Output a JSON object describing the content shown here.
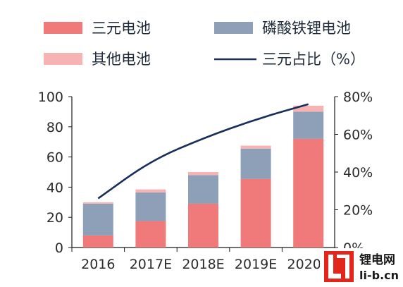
{
  "chart_data": {
    "type": "bar",
    "stacked": true,
    "categories": [
      "2016",
      "2017E",
      "2018E",
      "2019E",
      "2020E"
    ],
    "series": [
      {
        "name": "三元电池",
        "kind": "bar",
        "axis": "left",
        "color": "#f07a7a",
        "values": [
          8,
          17.5,
          29,
          45.5,
          72
        ]
      },
      {
        "name": "磷酸铁锂电池",
        "kind": "bar",
        "axis": "left",
        "color": "#8ea0b8",
        "values": [
          21,
          19,
          19,
          20,
          18
        ]
      },
      {
        "name": "其他电池",
        "kind": "bar",
        "axis": "left",
        "color": "#f7b3b3",
        "values": [
          1,
          2,
          2,
          2,
          4
        ]
      },
      {
        "name": "三元占比（%）",
        "kind": "line",
        "axis": "right",
        "color": "#1a2e5a",
        "values": [
          26,
          46,
          58,
          68,
          76
        ]
      }
    ],
    "y_left": {
      "ylim": [
        0,
        100
      ],
      "ticks": [
        "0",
        "20",
        "40",
        "60",
        "80",
        "100"
      ]
    },
    "y_right": {
      "ylim": [
        0,
        80
      ],
      "ticks": [
        "0%",
        "20%",
        "40%",
        "60%",
        "80%"
      ]
    },
    "legend_position": "top",
    "grid": false
  },
  "watermark": {
    "line1": "锂电网",
    "line2": "li-b.cn",
    "color": "#e3261b"
  }
}
